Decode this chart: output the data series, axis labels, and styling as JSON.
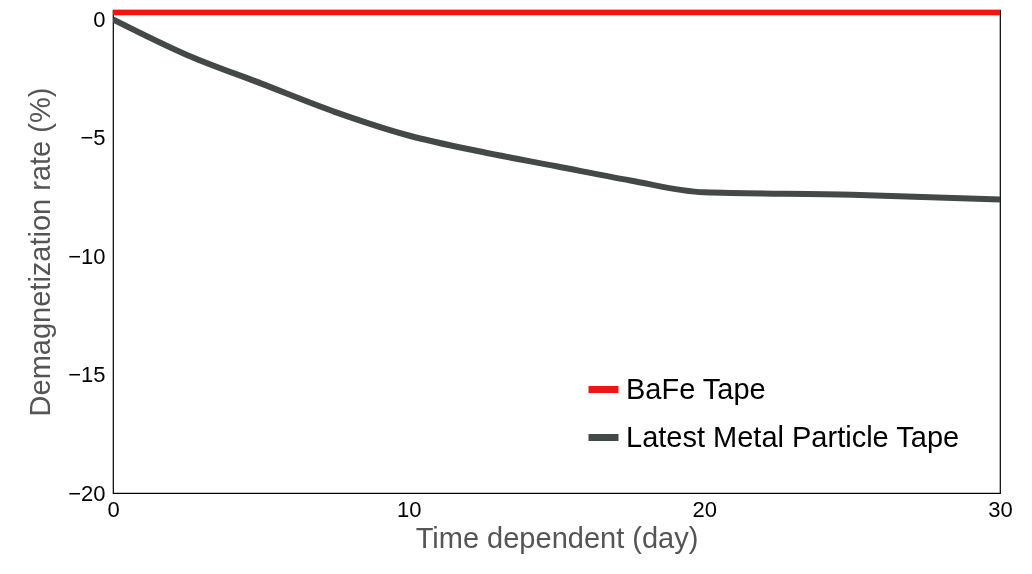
{
  "chart_data": {
    "type": "line",
    "xlabel": "Time dependent (day)",
    "ylabel": "Demagnetization rate (%)",
    "xlim": [
      0,
      30
    ],
    "ylim": [
      -20,
      0.4
    ],
    "xticks": [
      0,
      10,
      20,
      30
    ],
    "yticks": [
      -20,
      -15,
      -10,
      -5,
      0
    ],
    "grid": false,
    "legend": "bottom right",
    "line_style": "solid",
    "marker": "none",
    "series": [
      {
        "name": "BaFe Tape",
        "color": "#f01414",
        "x": [
          0,
          30
        ],
        "values": [
          0.3,
          0.3
        ]
      },
      {
        "name": "Latest Metal Particle Tape",
        "color": "#434848",
        "x": [
          0,
          2.5,
          5,
          7.5,
          10,
          12.5,
          15,
          17.5,
          20,
          25,
          30
        ],
        "values": [
          0,
          -1.5,
          -2.7,
          -3.9,
          -4.9,
          -5.6,
          -6.2,
          -6.8,
          -7.3,
          -7.4,
          -7.6
        ]
      }
    ]
  }
}
